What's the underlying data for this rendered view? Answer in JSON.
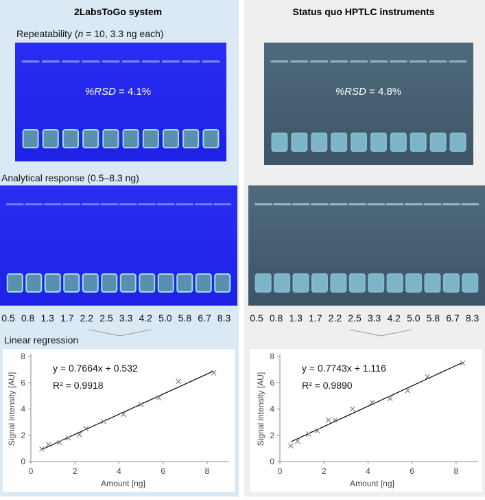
{
  "left": {
    "title": "2LabsToGo system",
    "repeatability": {
      "prefix": "Repeatability (",
      "n": "n",
      "suffix": " = 10, 3.3 ng each)"
    },
    "rsd": {
      "label": "%RSD",
      "value": " = 4.1%"
    },
    "analytical": "Analytical response (0.5–8.3 ng)",
    "lanes": [
      "0.5",
      "0.8",
      "1.3",
      "1.7",
      "2.2",
      "2.5",
      "3.3",
      "4.2",
      "5.0",
      "5.8",
      "6.7",
      "8.3"
    ],
    "regression": "Linear regression"
  },
  "right": {
    "title": "Status quo HPTLC instruments",
    "rsd": {
      "label": "%RSD",
      "value": " = 4.8%"
    },
    "lanes": [
      "0.5",
      "0.8",
      "1.3",
      "1.7",
      "2.2",
      "2.5",
      "3.3",
      "4.2",
      "5.0",
      "5.8",
      "6.7",
      "8.3"
    ]
  },
  "chart_data": [
    {
      "type": "scatter",
      "xlabel": "Amount [ng]",
      "ylabel": "Signal intensity [AU]",
      "x": [
        0.5,
        0.8,
        1.3,
        1.7,
        2.2,
        2.5,
        3.3,
        4.2,
        5.0,
        5.8,
        6.7,
        8.3
      ],
      "values": [
        0.95,
        1.3,
        1.45,
        1.8,
        2.05,
        2.5,
        3.05,
        3.6,
        4.35,
        4.85,
        6.1,
        6.75
      ],
      "color": "#808080",
      "fit": {
        "slope": 0.7664,
        "intercept": 0.532
      },
      "equation": "y = 0.7664x + 0.532",
      "r2": "R² = 0.9918",
      "xlim": [
        0,
        9
      ],
      "xticks": [
        0,
        2,
        4,
        6,
        8
      ],
      "ylim": [
        0,
        8
      ],
      "yticks": [
        0,
        2,
        4,
        6,
        8
      ]
    },
    {
      "type": "scatter",
      "xlabel": "Amount [ng]",
      "ylabel": "Signal intensity [AU]",
      "x": [
        0.5,
        0.8,
        1.3,
        1.7,
        2.2,
        2.5,
        3.3,
        4.2,
        5.0,
        5.8,
        6.7,
        8.3
      ],
      "values": [
        1.2,
        1.55,
        2.1,
        2.35,
        3.15,
        3.15,
        4.0,
        4.5,
        4.8,
        5.4,
        6.45,
        7.5
      ],
      "color": "#808080",
      "fit": {
        "slope": 0.7743,
        "intercept": 1.116
      },
      "equation": "y = 0.7743x + 1.116",
      "r2": "R² = 0.9890",
      "xlim": [
        0,
        9
      ],
      "xticks": [
        0,
        2,
        4,
        6,
        8
      ],
      "ylim": [
        0,
        8
      ],
      "yticks": [
        0,
        2,
        4,
        6,
        8
      ]
    }
  ]
}
